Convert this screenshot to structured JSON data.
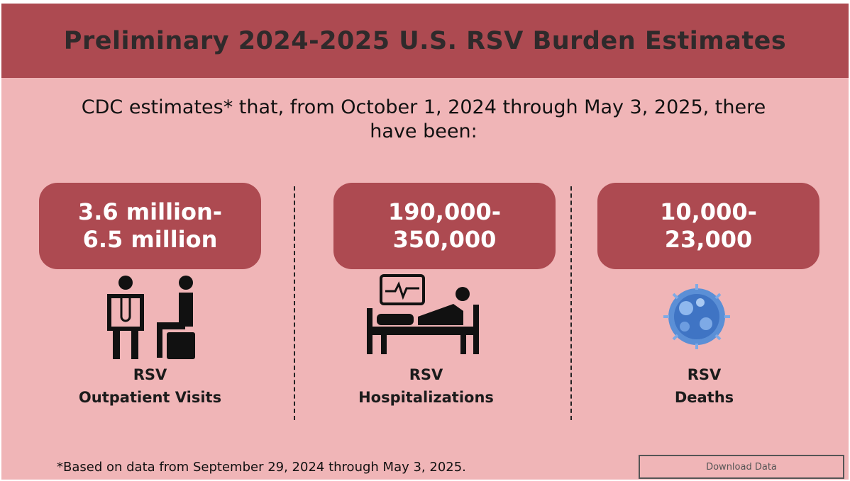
{
  "header": {
    "title": "Preliminary 2024-2025 U.S. RSV Burden Estimates"
  },
  "intro": "CDC estimates* that, from October 1, 2024 through May 3, 2025, there have been:",
  "cards": [
    {
      "value_lines": [
        "3.6 million-",
        "6.5 million"
      ],
      "label_lines": [
        "RSV",
        "Outpatient Visits"
      ]
    },
    {
      "value_lines": [
        "190,000-",
        "350,000"
      ],
      "label_lines": [
        "RSV",
        "Hospitalizations"
      ]
    },
    {
      "value_lines": [
        "10,000-",
        "23,000"
      ],
      "label_lines": [
        "RSV",
        "Deaths"
      ]
    }
  ],
  "footnote": "*Based on data from September 29, 2024 through May 3, 2025.",
  "button": "Download Data"
}
